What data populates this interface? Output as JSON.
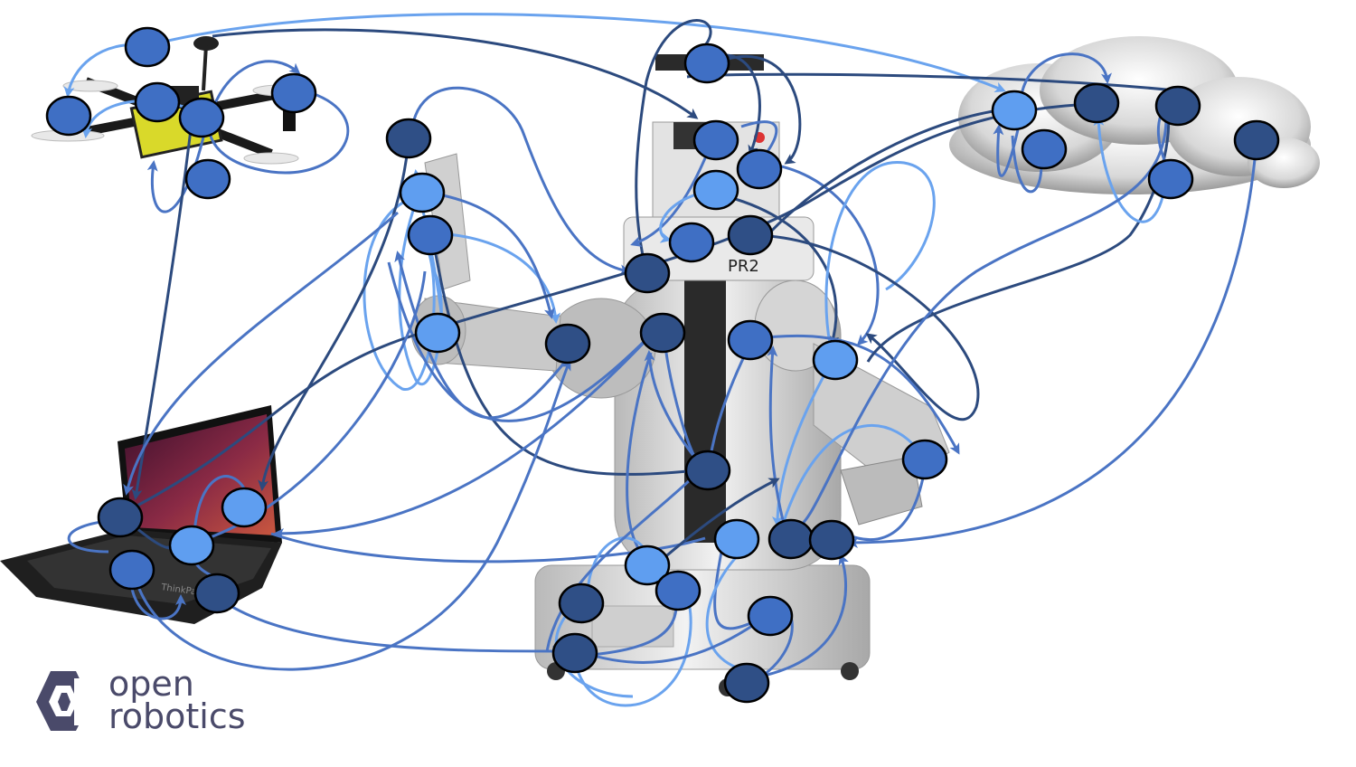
{
  "colors": {
    "node_dark": "#2f4f86",
    "node_medium": "#3f6fc4",
    "node_light": "#5f9ef0",
    "edge_dark": "#2c4a7e",
    "edge_medium": "#4a74c4",
    "edge_light": "#6aa3ee",
    "logo": "#4a4a6a",
    "node_stroke": "#000000"
  },
  "pictures": [
    "quadcopter-drone",
    "laptop-ubuntu",
    "pr2-robot",
    "cloud"
  ],
  "robot_label": "PR2",
  "laptop_label": "ThinkPad",
  "logo": {
    "line1": "open",
    "line2": "robotics"
  }
}
